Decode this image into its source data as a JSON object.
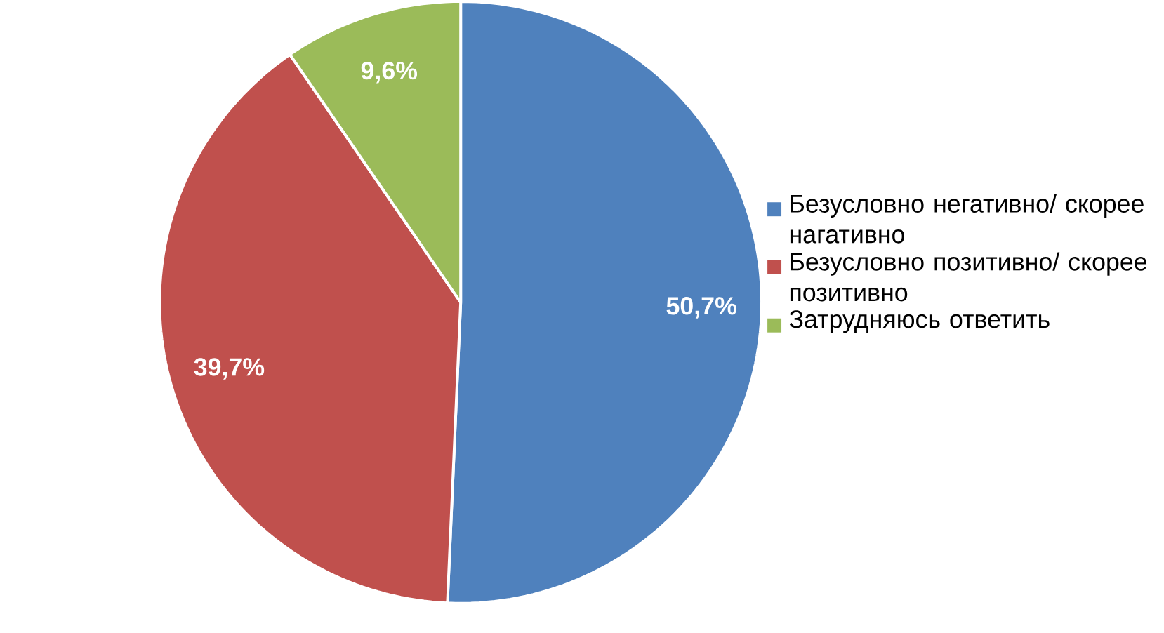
{
  "chart_data": {
    "type": "pie",
    "categories": [
      "Безусловно негативно/ скорее нагативно",
      "Безусловно позитивно/ скорее позитивно",
      "Затрудняюсь ответить"
    ],
    "values": [
      50.7,
      39.7,
      9.6
    ],
    "colors": [
      "#4f81bd",
      "#c0504d",
      "#9bbb59"
    ],
    "value_labels": [
      "50,7%",
      "39,7%",
      "9,6%"
    ],
    "legend": "right"
  }
}
